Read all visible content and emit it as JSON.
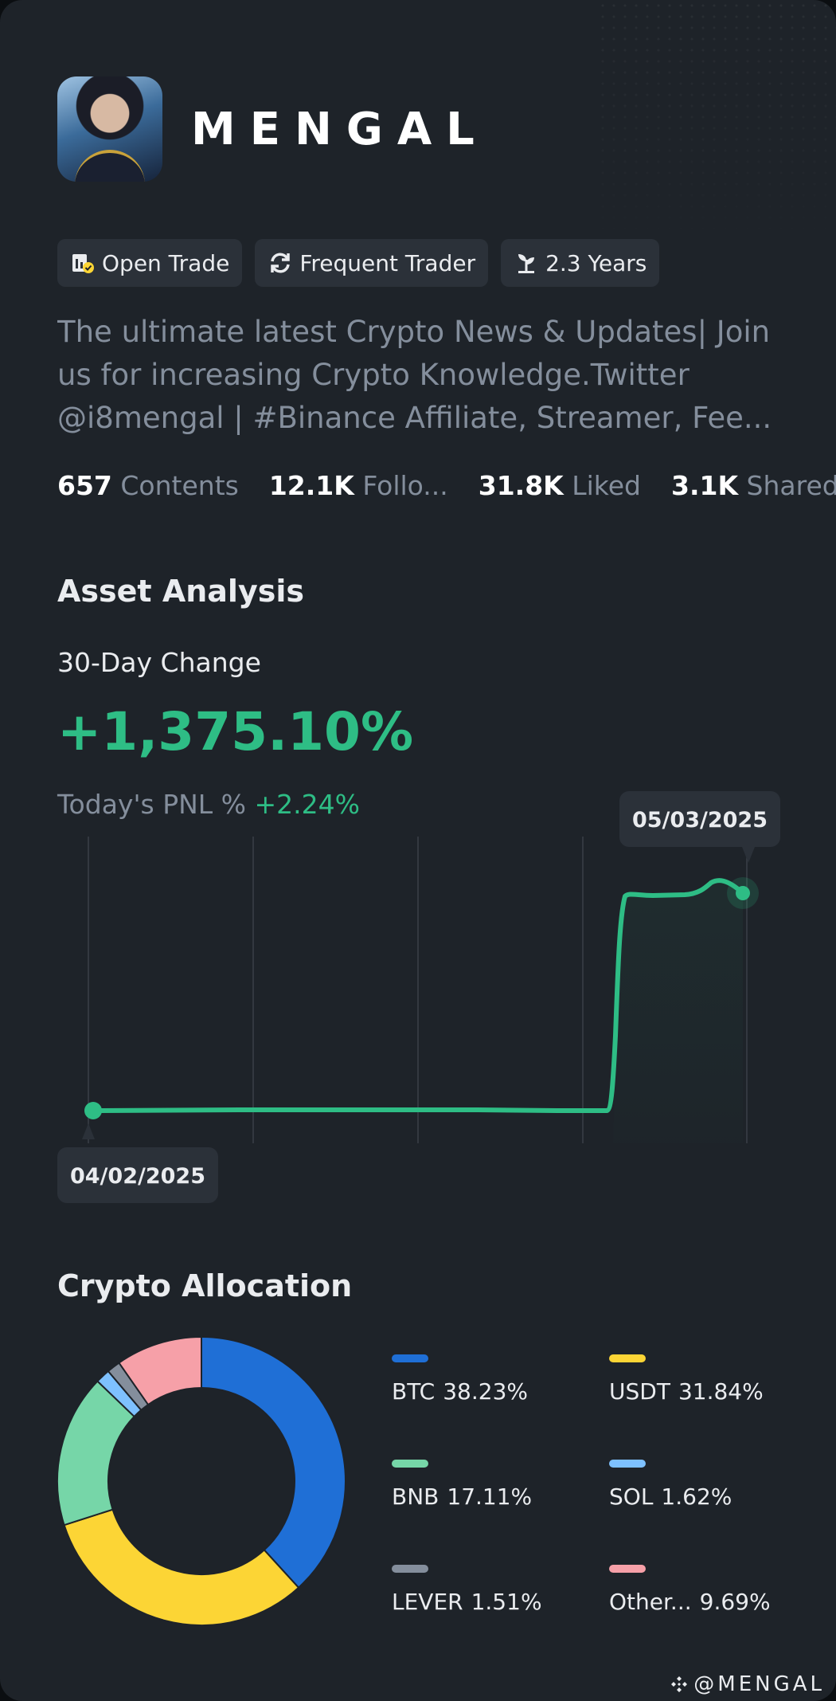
{
  "profile": {
    "name": "MENGAL",
    "tags": [
      {
        "label": "Open Trade",
        "icon": "open-trade-icon"
      },
      {
        "label": "Frequent Trader",
        "icon": "refresh-icon"
      },
      {
        "label": "2.3 Years",
        "icon": "sprout-icon"
      }
    ],
    "bio": "The ultimate latest Crypto News & Updates| Join us for increasing Crypto Knowledge.Twitter @i8mengal | #Binance Affiliate, Streamer, Fee...",
    "stats": [
      {
        "value": "657",
        "label": "Contents"
      },
      {
        "value": "12.1K",
        "label": "Follo..."
      },
      {
        "value": "31.8K",
        "label": "Liked"
      },
      {
        "value": "3.1K",
        "label": "Shared"
      }
    ]
  },
  "asset_analysis": {
    "title": "Asset Analysis",
    "change_label": "30-Day Change",
    "change_value": "+1,375.10%",
    "pnl_label": "Today's PNL %",
    "pnl_value": "+2.24%",
    "start_date": "04/02/2025",
    "end_date": "05/03/2025"
  },
  "allocation": {
    "title": "Crypto Allocation",
    "items": [
      {
        "name": "BTC",
        "pct": "38.23%",
        "value": 38.23,
        "color": "#1f6fd6"
      },
      {
        "name": "USDT",
        "pct": "31.84%",
        "value": 31.84,
        "color": "#fcd535"
      },
      {
        "name": "BNB",
        "pct": "17.11%",
        "value": 17.11,
        "color": "#76d6a8"
      },
      {
        "name": "SOL",
        "pct": "1.62%",
        "value": 1.62,
        "color": "#7ec1ff"
      },
      {
        "name": "LEVER",
        "pct": "1.51%",
        "value": 1.51,
        "color": "#848e9c"
      },
      {
        "name": "Other...",
        "pct": "9.69%",
        "value": 9.69,
        "color": "#f6a0a8"
      }
    ]
  },
  "watermark": "@MENGAL",
  "colors": {
    "accent_green": "#2ebd85",
    "background": "#1e2329",
    "chip": "#2b3139"
  }
}
